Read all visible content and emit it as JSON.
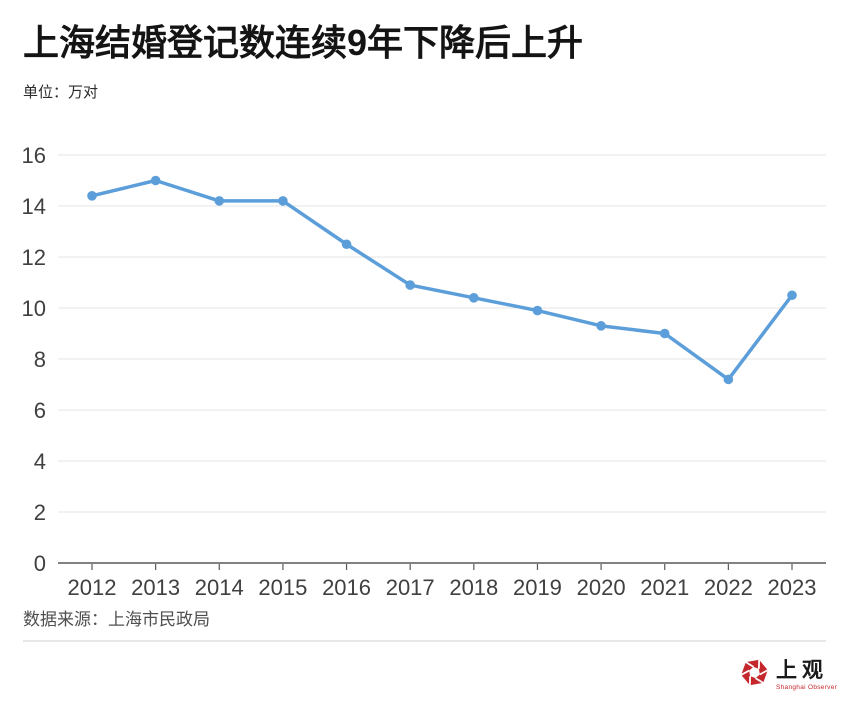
{
  "header": {
    "title": "上海结婚登记数连续9年下降后上升",
    "unit_label": "单位：万对"
  },
  "chart_data": {
    "type": "line",
    "title": "上海结婚登记数连续9年下降后上升",
    "unit": "万对",
    "x": [
      "2012",
      "2013",
      "2014",
      "2015",
      "2016",
      "2017",
      "2018",
      "2019",
      "2020",
      "2021",
      "2022",
      "2023"
    ],
    "values": [
      14.4,
      15.0,
      14.2,
      14.2,
      12.5,
      10.9,
      10.4,
      9.9,
      9.3,
      9.0,
      7.2,
      10.5
    ],
    "ylim": [
      0,
      16
    ],
    "ytick_step": 2,
    "grid": true,
    "legend": false,
    "line_color": "#5B9ED9",
    "grid_color": "#E4E4E4",
    "axis_line_color": "#595959",
    "axis_label_color": "#404040"
  },
  "footer": {
    "source": "数据来源：上海市民政局"
  },
  "logo": {
    "name_cn": "上观",
    "name_en": "Shanghai Observer",
    "brand_red": "#C5282C"
  }
}
